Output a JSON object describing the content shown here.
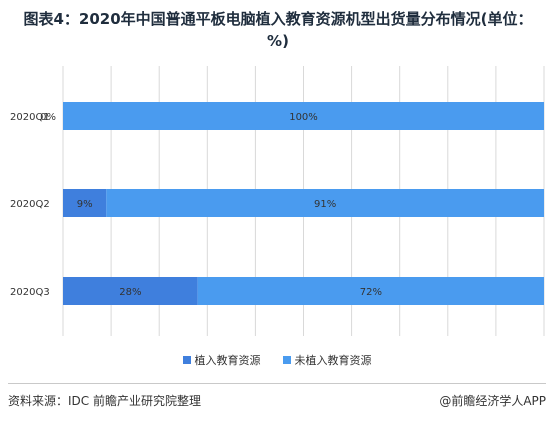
{
  "title": "图表4：2020年中国普通平板电脑植入教育资源机型出货量分布情况(单位：%)",
  "footer": {
    "source": "资料来源：IDC 前瞻产业研究院整理",
    "brand": "@前瞻经济学人APP"
  },
  "colors": {
    "series_embedded": "#3f7fdd",
    "series_not_embedded": "#4a9bef",
    "grid": "#d9d9d9",
    "text": "#333333"
  },
  "chart_data": {
    "type": "bar",
    "orientation": "horizontal",
    "stacked": true,
    "title": "图表4：2020年中国普通平板电脑植入教育资源机型出货量分布情况(单位：%)",
    "categories": [
      "2020Q1",
      "2020Q2",
      "2020Q3"
    ],
    "series": [
      {
        "name": "植入教育资源",
        "values": [
          0,
          9,
          28
        ],
        "labels": [
          "0%",
          "9%",
          "28%"
        ]
      },
      {
        "name": "未植入教育资源",
        "values": [
          100,
          91,
          72
        ],
        "labels": [
          "100%",
          "91%",
          "72%"
        ]
      }
    ],
    "xlim": [
      0,
      100
    ],
    "grid": true,
    "legend": "bottom"
  }
}
